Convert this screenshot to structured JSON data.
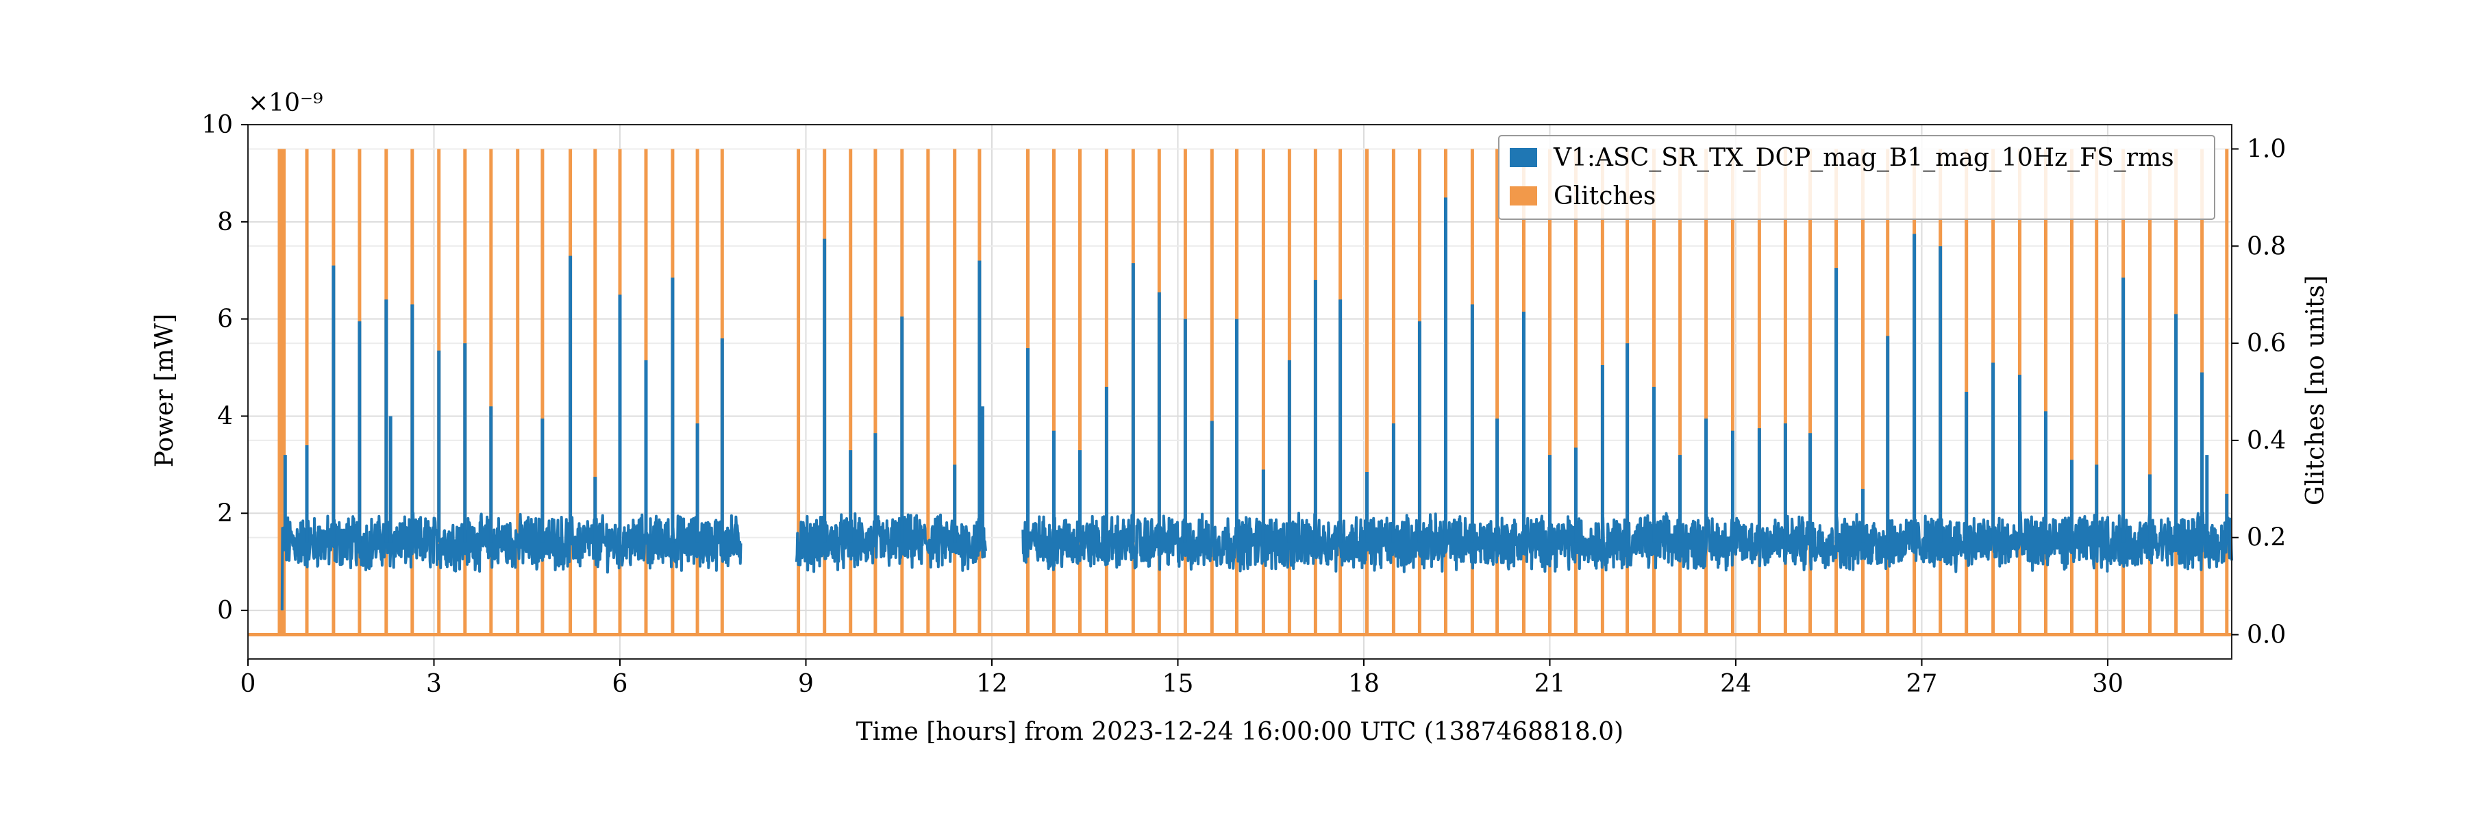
{
  "chart_data": {
    "type": "line",
    "xlabel": "Time [hours] from 2023-12-24 16:00:00 UTC (1387468818.0)",
    "ylabel": "Power [mW]",
    "y2label": "Glitches [no units]",
    "y_multiplier": "×10⁻⁹",
    "xlim": [
      0,
      32
    ],
    "ylim": [
      -1.0,
      10.0
    ],
    "y2lim": [
      -0.05,
      1.05
    ],
    "x_ticks": [
      0,
      3,
      6,
      9,
      12,
      15,
      18,
      21,
      24,
      27,
      30
    ],
    "x_tick_labels": [
      "0",
      "3",
      "6",
      "9",
      "12",
      "15",
      "18",
      "21",
      "24",
      "27",
      "30"
    ],
    "y_ticks": [
      0,
      2,
      4,
      6,
      8,
      10
    ],
    "y_tick_labels": [
      "0",
      "2",
      "4",
      "6",
      "8",
      "10"
    ],
    "y2_ticks": [
      0.0,
      0.2,
      0.4,
      0.6,
      0.8,
      1.0
    ],
    "y2_tick_labels": [
      "0.0",
      "0.2",
      "0.4",
      "0.6",
      "0.8",
      "1.0"
    ],
    "grid": true,
    "legend_position": "top-right",
    "power_baseline": 1.4,
    "series": [
      {
        "name": "V1:ASC_SR_TX_DCP_mag_B1_mag_10Hz_FS_rms",
        "axis": "left",
        "color": "#1f77b4",
        "segments": [
          [
            0.55,
            7.95
          ],
          [
            8.85,
            11.9
          ],
          [
            12.5,
            32.0
          ]
        ],
        "spikes": [
          {
            "x": 0.6,
            "y": 3.2
          },
          {
            "x": 0.95,
            "y": 3.4
          },
          {
            "x": 1.38,
            "y": 7.1
          },
          {
            "x": 1.8,
            "y": 5.95
          },
          {
            "x": 2.23,
            "y": 6.4
          },
          {
            "x": 2.3,
            "y": 4.0
          },
          {
            "x": 2.65,
            "y": 6.3
          },
          {
            "x": 3.08,
            "y": 5.35
          },
          {
            "x": 3.5,
            "y": 5.5
          },
          {
            "x": 3.92,
            "y": 4.2
          },
          {
            "x": 4.75,
            "y": 3.95
          },
          {
            "x": 5.2,
            "y": 7.3
          },
          {
            "x": 5.6,
            "y": 2.75
          },
          {
            "x": 6.0,
            "y": 6.5
          },
          {
            "x": 6.42,
            "y": 5.15
          },
          {
            "x": 6.85,
            "y": 6.85
          },
          {
            "x": 7.25,
            "y": 3.85
          },
          {
            "x": 7.65,
            "y": 5.6
          },
          {
            "x": 9.3,
            "y": 7.65
          },
          {
            "x": 9.72,
            "y": 3.3
          },
          {
            "x": 10.12,
            "y": 3.65
          },
          {
            "x": 10.55,
            "y": 6.05
          },
          {
            "x": 11.4,
            "y": 3.0
          },
          {
            "x": 11.8,
            "y": 7.2
          },
          {
            "x": 11.85,
            "y": 4.2
          },
          {
            "x": 12.58,
            "y": 5.4
          },
          {
            "x": 13.0,
            "y": 3.7
          },
          {
            "x": 13.42,
            "y": 3.3
          },
          {
            "x": 13.85,
            "y": 4.6
          },
          {
            "x": 14.28,
            "y": 7.15
          },
          {
            "x": 14.7,
            "y": 6.55
          },
          {
            "x": 15.12,
            "y": 6.0
          },
          {
            "x": 15.55,
            "y": 3.9
          },
          {
            "x": 15.95,
            "y": 6.0
          },
          {
            "x": 16.38,
            "y": 2.9
          },
          {
            "x": 16.8,
            "y": 5.15
          },
          {
            "x": 17.22,
            "y": 6.8
          },
          {
            "x": 17.62,
            "y": 6.4
          },
          {
            "x": 18.05,
            "y": 2.85
          },
          {
            "x": 18.48,
            "y": 3.85
          },
          {
            "x": 18.9,
            "y": 5.95
          },
          {
            "x": 19.32,
            "y": 8.5
          },
          {
            "x": 19.75,
            "y": 6.3
          },
          {
            "x": 20.15,
            "y": 3.95
          },
          {
            "x": 20.58,
            "y": 6.15
          },
          {
            "x": 21.0,
            "y": 3.2
          },
          {
            "x": 21.42,
            "y": 3.35
          },
          {
            "x": 21.85,
            "y": 5.05
          },
          {
            "x": 22.25,
            "y": 5.5
          },
          {
            "x": 22.68,
            "y": 4.6
          },
          {
            "x": 23.1,
            "y": 3.2
          },
          {
            "x": 23.52,
            "y": 3.95
          },
          {
            "x": 23.95,
            "y": 3.7
          },
          {
            "x": 24.38,
            "y": 3.75
          },
          {
            "x": 24.8,
            "y": 3.85
          },
          {
            "x": 25.2,
            "y": 3.65
          },
          {
            "x": 25.62,
            "y": 7.05
          },
          {
            "x": 26.05,
            "y": 2.5
          },
          {
            "x": 26.45,
            "y": 5.65
          },
          {
            "x": 26.88,
            "y": 7.75
          },
          {
            "x": 27.3,
            "y": 7.5
          },
          {
            "x": 27.72,
            "y": 4.5
          },
          {
            "x": 28.15,
            "y": 5.1
          },
          {
            "x": 28.58,
            "y": 4.85
          },
          {
            "x": 29.0,
            "y": 4.1
          },
          {
            "x": 29.42,
            "y": 3.1
          },
          {
            "x": 29.82,
            "y": 3.0
          },
          {
            "x": 30.25,
            "y": 6.85
          },
          {
            "x": 30.68,
            "y": 2.8
          },
          {
            "x": 31.1,
            "y": 6.1
          },
          {
            "x": 31.52,
            "y": 4.9
          },
          {
            "x": 31.6,
            "y": 3.2
          },
          {
            "x": 31.92,
            "y": 2.4
          }
        ]
      },
      {
        "name": "Glitches",
        "axis": "right",
        "color": "#f2994a",
        "type": "step",
        "pulse_height": 1.0,
        "pulses": [
          0.52,
          0.58,
          0.95,
          1.38,
          1.8,
          2.23,
          2.65,
          3.08,
          3.5,
          3.92,
          4.35,
          4.75,
          5.2,
          5.6,
          6.0,
          6.42,
          6.85,
          7.25,
          7.65,
          8.88,
          9.3,
          9.72,
          10.12,
          10.55,
          10.97,
          11.4,
          11.8,
          12.58,
          13.0,
          13.42,
          13.85,
          14.28,
          14.7,
          15.12,
          15.55,
          15.95,
          16.38,
          16.8,
          17.22,
          17.62,
          18.05,
          18.48,
          18.9,
          19.32,
          19.75,
          20.15,
          20.58,
          21.0,
          21.42,
          21.85,
          22.25,
          22.68,
          23.1,
          23.52,
          23.95,
          24.38,
          24.8,
          25.2,
          25.62,
          26.05,
          26.45,
          26.88,
          27.3,
          27.72,
          28.15,
          28.58,
          29.0,
          29.42,
          29.82,
          30.25,
          30.68,
          31.1,
          31.52,
          31.92
        ]
      }
    ]
  }
}
